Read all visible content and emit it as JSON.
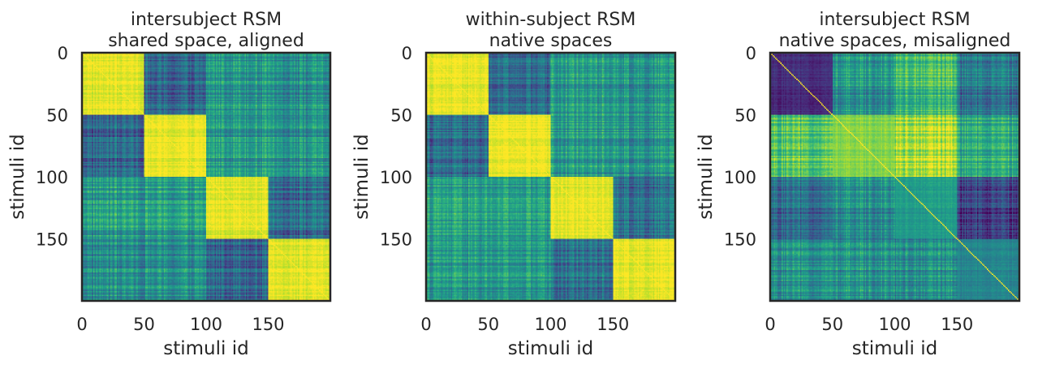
{
  "chart_data": [
    {
      "type": "heatmap",
      "title": "intersubject RSM\nshared space, aligned",
      "xlabel": "stimuli id",
      "ylabel": "stimuli id",
      "n": 200,
      "block_size": 50,
      "x_ticks": [
        0,
        50,
        100,
        150
      ],
      "y_ticks": [
        0,
        50,
        100,
        150
      ],
      "colormap": "viridis",
      "block_levels": [
        [
          0.96,
          0.32,
          0.55,
          0.5
        ],
        [
          0.32,
          0.96,
          0.55,
          0.5
        ],
        [
          0.55,
          0.55,
          0.96,
          0.35
        ],
        [
          0.5,
          0.5,
          0.35,
          0.96
        ]
      ]
    },
    {
      "type": "heatmap",
      "title": "within-subject RSM\nnative spaces",
      "xlabel": "stimuli id",
      "ylabel": "stimuli id",
      "n": 200,
      "block_size": 50,
      "x_ticks": [
        0,
        50,
        100,
        150
      ],
      "y_ticks": [
        0,
        50,
        100,
        150
      ],
      "colormap": "viridis",
      "block_levels": [
        [
          0.96,
          0.34,
          0.55,
          0.52
        ],
        [
          0.34,
          0.97,
          0.55,
          0.52
        ],
        [
          0.55,
          0.55,
          0.96,
          0.37
        ],
        [
          0.52,
          0.52,
          0.37,
          0.96
        ]
      ]
    },
    {
      "type": "heatmap",
      "title": "intersubject RSM\nnative spaces, misaligned",
      "xlabel": "stimuli id",
      "ylabel": "stimuli id",
      "n": 200,
      "block_size": 50,
      "x_ticks": [
        0,
        50,
        100,
        150
      ],
      "y_ticks": [
        0,
        50,
        100,
        150
      ],
      "colormap": "viridis",
      "block_levels": [
        [
          0.12,
          0.52,
          0.68,
          0.38
        ],
        [
          0.72,
          0.82,
          0.88,
          0.6
        ],
        [
          0.35,
          0.5,
          0.55,
          0.18
        ],
        [
          0.5,
          0.52,
          0.5,
          0.45
        ]
      ]
    }
  ]
}
